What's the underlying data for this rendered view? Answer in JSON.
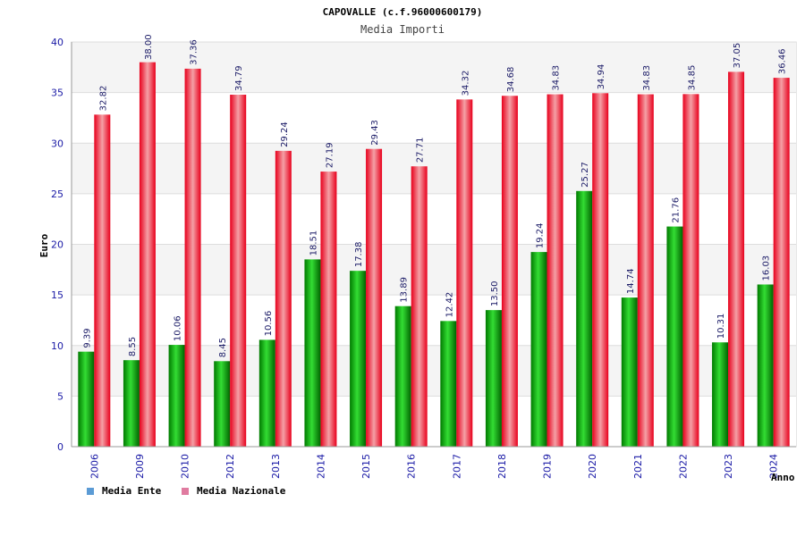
{
  "chart_data": {
    "type": "bar",
    "title": "CAPOVALLE (c.f.96000600179)",
    "subtitle": "Media Importi",
    "ylabel": "Euro",
    "xlabel": "Anno",
    "ylim": [
      0,
      40
    ],
    "yticks": [
      0,
      5,
      10,
      15,
      20,
      25,
      30,
      35,
      40
    ],
    "categories": [
      "2006",
      "2009",
      "2010",
      "2012",
      "2013",
      "2014",
      "2015",
      "2016",
      "2017",
      "2018",
      "2019",
      "2020",
      "2021",
      "2022",
      "2023",
      "2024"
    ],
    "series": [
      {
        "name": "Media Ente",
        "values": [
          9.39,
          8.55,
          10.06,
          8.45,
          10.56,
          18.51,
          17.38,
          13.89,
          12.42,
          13.5,
          19.24,
          25.27,
          14.74,
          21.76,
          10.31,
          16.03
        ],
        "labels": [
          "9.39",
          "8.55",
          "10.06",
          "8.45",
          "10.56",
          "18.51",
          "17.38",
          "13.89",
          "12.42",
          "13.50",
          "19.24",
          "25.27",
          "14.74",
          "21.76",
          "10.31",
          "16.03"
        ]
      },
      {
        "name": "Media Nazionale",
        "values": [
          32.82,
          38.0,
          37.36,
          34.79,
          29.24,
          27.19,
          29.43,
          27.71,
          34.32,
          34.68,
          34.83,
          34.94,
          34.83,
          34.85,
          37.05,
          36.46
        ],
        "labels": [
          "32.82",
          "38.00",
          "37.36",
          "34.79",
          "29.24",
          "27.19",
          "29.43",
          "27.71",
          "34.32",
          "34.68",
          "34.83",
          "34.94",
          "34.83",
          "34.85",
          "37.05",
          "36.46"
        ]
      }
    ],
    "legend_position": "bottom-left",
    "grid": true,
    "colors": {
      "ente": "#00b000",
      "nazionale": "#ee1c24",
      "legend_ente": "#5b9bd5",
      "legend_nazionale": "#e07ba0",
      "tick": "#1a1aa6"
    }
  }
}
